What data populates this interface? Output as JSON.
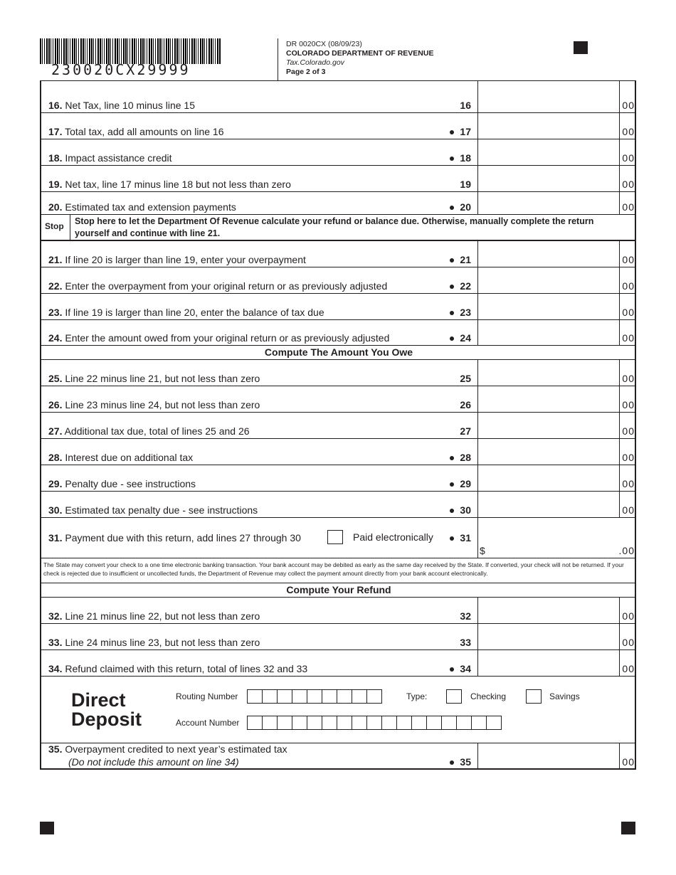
{
  "header": {
    "barcode_number": "230020CX29999",
    "form_id": "DR 0020CX (08/09/23)",
    "department": "COLORADO DEPARTMENT OF REVENUE",
    "website": "Tax.Colorado.gov",
    "page": "Page 2 of 3"
  },
  "cents_label": "00",
  "lines_a": [
    {
      "n": "16.",
      "text": "Net Tax, line 10 minus line 15",
      "ref": "16",
      "dot": false
    },
    {
      "n": "17.",
      "text": "Total tax, add all amounts on line 16",
      "ref": "17",
      "dot": true
    },
    {
      "n": "18.",
      "text": "Impact assistance credit",
      "ref": "18",
      "dot": true
    },
    {
      "n": "19.",
      "text": "Net tax, line 17 minus line 18 but not less than zero",
      "ref": "19",
      "dot": false
    },
    {
      "n": "20.",
      "text": "Estimated tax and extension payments",
      "ref": "20",
      "dot": true
    }
  ],
  "stop": {
    "label": "Stop",
    "text": "Stop here to let the Department Of Revenue calculate your refund or balance due. Otherwise, manually complete the return yourself and continue with line 21."
  },
  "lines_b": [
    {
      "n": "21.",
      "text": "If line 20 is larger than line 19, enter your overpayment",
      "ref": "21",
      "dot": true
    },
    {
      "n": "22.",
      "text": "Enter the overpayment from your original return or as previously adjusted",
      "ref": "22",
      "dot": true
    },
    {
      "n": "23.",
      "text": "If line 19 is larger than line 20, enter the balance of tax due",
      "ref": "23",
      "dot": true
    },
    {
      "n": "24.",
      "text": "Enter the amount owed from your original return or as previously adjusted",
      "ref": "24",
      "dot": true
    }
  ],
  "owe_heading": "Compute The Amount You Owe",
  "lines_c": [
    {
      "n": "25.",
      "text": "Line 22 minus line 21, but not less than zero",
      "ref": "25",
      "dot": false
    },
    {
      "n": "26.",
      "text": "Line 23 minus line 24, but not less than zero",
      "ref": "26",
      "dot": false
    },
    {
      "n": "27.",
      "text": "Additional tax due, total of lines 25 and 26",
      "ref": "27",
      "dot": false
    },
    {
      "n": "28.",
      "text": "Interest due on additional tax",
      "ref": "28",
      "dot": true
    },
    {
      "n": "29.",
      "text": "Penalty due - see instructions",
      "ref": "29",
      "dot": true
    },
    {
      "n": "30.",
      "text": "Estimated tax penalty due - see instructions",
      "ref": "30",
      "dot": true
    }
  ],
  "line31": {
    "n": "31.",
    "text": "Payment due with this return, add lines 27 through 30",
    "checkbox_label": "Paid electronically",
    "ref": "31",
    "dollar": "$",
    "cents": ".00"
  },
  "notice": "The State may convert your check to a one time electronic banking transaction. Your bank account may be debited as early as the same day received by the State. If converted, your check will not be returned.  If your check is rejected due to insufficient or uncollected funds, the Department of Revenue may collect the payment amount directly from your bank account electronically.",
  "refund_heading": "Compute Your Refund",
  "lines_d": [
    {
      "n": "32.",
      "text": "Line 21 minus line 22, but not less than zero",
      "ref": "32",
      "dot": false
    },
    {
      "n": "33.",
      "text": "Line 24 minus line 23, but not less than zero",
      "ref": "33",
      "dot": false
    },
    {
      "n": "34.",
      "text": "Refund claimed with this return, total of lines 32 and 33",
      "ref": "34",
      "dot": true
    }
  ],
  "direct_deposit": {
    "title_1": "Direct",
    "title_2": "Deposit",
    "routing_label": "Routing Number",
    "account_label": "Account Number",
    "type_label": "Type:",
    "checking": "Checking",
    "savings": "Savings"
  },
  "line35": {
    "n": "35.",
    "text": "Overpayment credited to next year’s estimated tax",
    "note": "(Do not include this amount on line 34)",
    "ref": "35",
    "dot": true
  }
}
